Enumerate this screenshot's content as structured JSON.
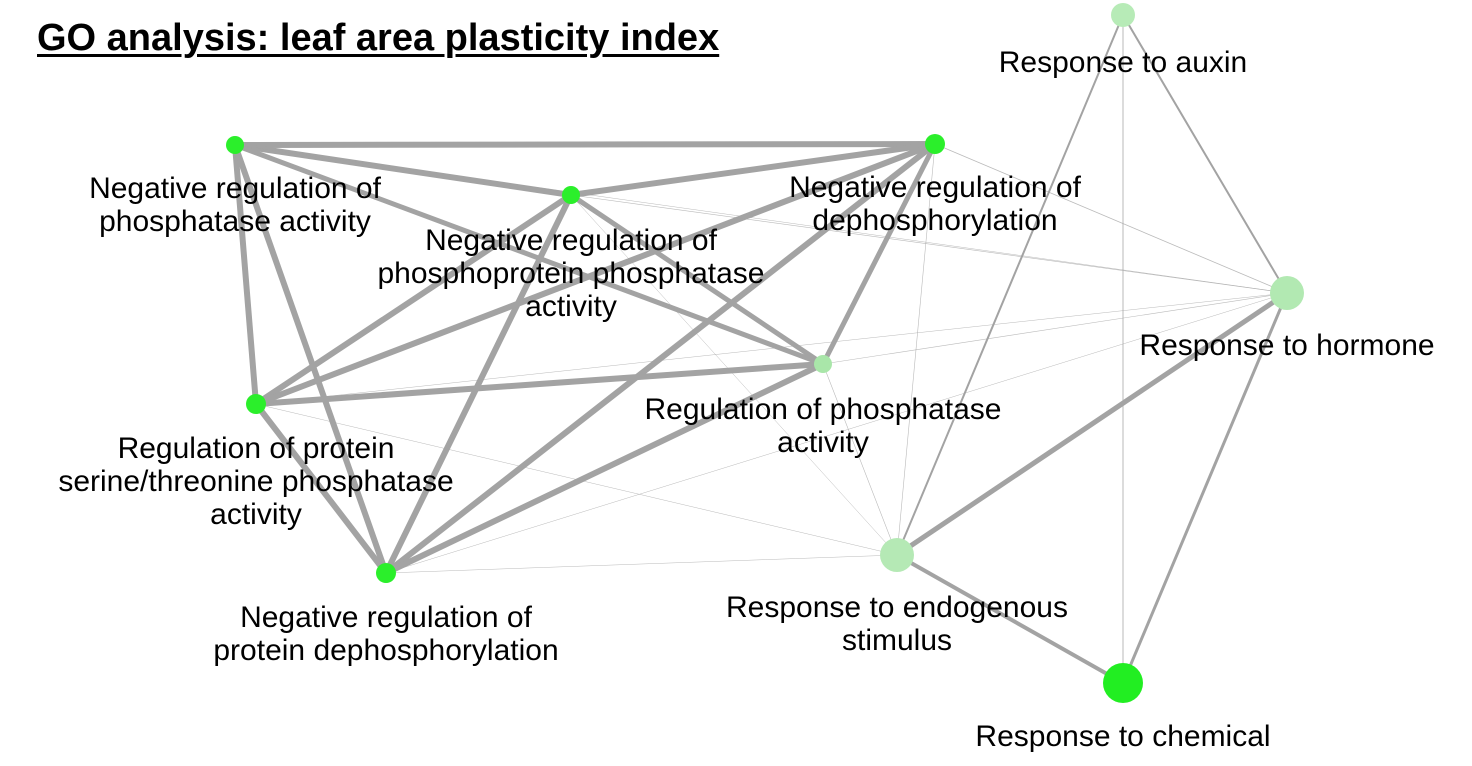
{
  "title": "GO analysis: leaf area plasticity index",
  "colors": {
    "edge": "#a3a3a3",
    "node_strong": "#22ee22",
    "node_faint": "#a8e8a8"
  },
  "nodes": [
    {
      "id": "neg-reg-phosphatase-activity",
      "lines": [
        "Negative regulation of",
        "phosphatase activity"
      ],
      "color": "#2bef2b",
      "size": 9
    },
    {
      "id": "neg-reg-phosphoprotein-phosphatase-activity",
      "lines": [
        "Negative regulation of",
        "phosphoprotein phosphatase",
        "activity"
      ],
      "color": "#2bef2b",
      "size": 9
    },
    {
      "id": "neg-reg-dephosphorylation",
      "lines": [
        "Negative regulation of",
        "dephosphorylation"
      ],
      "color": "#2bef2b",
      "size": 10
    },
    {
      "id": "reg-protein-ser-thr-phosphatase-activity",
      "lines": [
        "Regulation of protein",
        "serine/threonine phosphatase",
        "activity"
      ],
      "color": "#2bef2b",
      "size": 10
    },
    {
      "id": "reg-phosphatase-activity",
      "lines": [
        "Regulation of phosphatase",
        "activity"
      ],
      "color": "#a9e6a9",
      "size": 9
    },
    {
      "id": "neg-reg-protein-dephosphorylation",
      "lines": [
        "Negative regulation of",
        "protein dephosphorylation"
      ],
      "color": "#2bef2b",
      "size": 10
    },
    {
      "id": "response-to-auxin",
      "lines": [
        "Response to auxin"
      ],
      "color": "#b7ebb7",
      "size": 12
    },
    {
      "id": "response-to-hormone",
      "lines": [
        "Response to hormone"
      ],
      "color": "#b2e9b2",
      "size": 17
    },
    {
      "id": "response-to-endogenous-stimulus",
      "lines": [
        "Response to endogenous",
        "stimulus"
      ],
      "color": "#b5e9b5",
      "size": 17
    },
    {
      "id": "response-to-chemical",
      "lines": [
        "Response to chemical"
      ],
      "color": "#22ee22",
      "size": 20
    }
  ],
  "edges": [
    {
      "source": "neg-reg-phosphatase-activity",
      "target": "neg-reg-dephosphorylation",
      "weight": 6
    },
    {
      "source": "neg-reg-phosphatase-activity",
      "target": "neg-reg-phosphoprotein-phosphatase-activity",
      "weight": 6
    },
    {
      "source": "neg-reg-phosphatase-activity",
      "target": "reg-protein-ser-thr-phosphatase-activity",
      "weight": 6
    },
    {
      "source": "neg-reg-phosphatase-activity",
      "target": "neg-reg-protein-dephosphorylation",
      "weight": 6
    },
    {
      "source": "neg-reg-phosphatase-activity",
      "target": "reg-phosphatase-activity",
      "weight": 5
    },
    {
      "source": "neg-reg-phosphoprotein-phosphatase-activity",
      "target": "neg-reg-dephosphorylation",
      "weight": 6
    },
    {
      "source": "neg-reg-phosphoprotein-phosphatase-activity",
      "target": "reg-protein-ser-thr-phosphatase-activity",
      "weight": 6
    },
    {
      "source": "neg-reg-phosphoprotein-phosphatase-activity",
      "target": "neg-reg-protein-dephosphorylation",
      "weight": 6
    },
    {
      "source": "neg-reg-phosphoprotein-phosphatase-activity",
      "target": "reg-phosphatase-activity",
      "weight": 5
    },
    {
      "source": "neg-reg-dephosphorylation",
      "target": "reg-protein-ser-thr-phosphatase-activity",
      "weight": 6
    },
    {
      "source": "neg-reg-dephosphorylation",
      "target": "neg-reg-protein-dephosphorylation",
      "weight": 6
    },
    {
      "source": "neg-reg-dephosphorylation",
      "target": "reg-phosphatase-activity",
      "weight": 5
    },
    {
      "source": "reg-protein-ser-thr-phosphatase-activity",
      "target": "neg-reg-protein-dephosphorylation",
      "weight": 6
    },
    {
      "source": "reg-protein-ser-thr-phosphatase-activity",
      "target": "reg-phosphatase-activity",
      "weight": 6
    },
    {
      "source": "neg-reg-protein-dephosphorylation",
      "target": "reg-phosphatase-activity",
      "weight": 6
    },
    {
      "source": "response-to-auxin",
      "target": "response-to-hormone",
      "weight": 2
    },
    {
      "source": "response-to-auxin",
      "target": "response-to-endogenous-stimulus",
      "weight": 2
    },
    {
      "source": "response-to-auxin",
      "target": "response-to-chemical",
      "weight": 1
    },
    {
      "source": "response-to-hormone",
      "target": "response-to-endogenous-stimulus",
      "weight": 5
    },
    {
      "source": "response-to-hormone",
      "target": "response-to-chemical",
      "weight": 3
    },
    {
      "source": "response-to-endogenous-stimulus",
      "target": "response-to-chemical",
      "weight": 4
    },
    {
      "source": "neg-reg-dephosphorylation",
      "target": "response-to-hormone",
      "weight": 0.8
    },
    {
      "source": "neg-reg-dephosphorylation",
      "target": "response-to-endogenous-stimulus",
      "weight": 0.6
    },
    {
      "source": "neg-reg-phosphoprotein-phosphatase-activity",
      "target": "response-to-hormone",
      "weight": 0.6
    },
    {
      "source": "neg-reg-phosphoprotein-phosphatase-activity",
      "target": "response-to-endogenous-stimulus",
      "weight": 0.5
    },
    {
      "source": "neg-reg-phosphatase-activity",
      "target": "response-to-hormone",
      "weight": 0.5
    },
    {
      "source": "reg-phosphatase-activity",
      "target": "response-to-hormone",
      "weight": 0.6
    },
    {
      "source": "reg-phosphatase-activity",
      "target": "response-to-endogenous-stimulus",
      "weight": 0.6
    },
    {
      "source": "reg-protein-ser-thr-phosphatase-activity",
      "target": "response-to-hormone",
      "weight": 0.5
    },
    {
      "source": "reg-protein-ser-thr-phosphatase-activity",
      "target": "response-to-endogenous-stimulus",
      "weight": 0.5
    },
    {
      "source": "neg-reg-protein-dephosphorylation",
      "target": "response-to-hormone",
      "weight": 0.5
    },
    {
      "source": "neg-reg-protein-dephosphorylation",
      "target": "response-to-endogenous-stimulus",
      "weight": 0.5
    }
  ]
}
